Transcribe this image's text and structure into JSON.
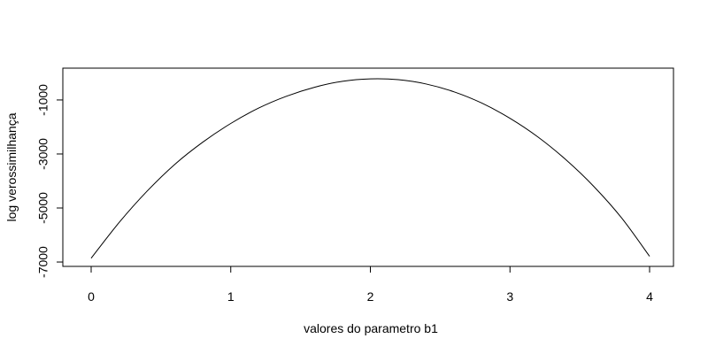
{
  "chart_data": {
    "type": "line",
    "xlabel": "valores do parametro b1",
    "ylabel": "log verossimilhança",
    "xlim": [
      0,
      4
    ],
    "ylim": [
      -6900,
      -150
    ],
    "xticks": [
      0,
      1,
      2,
      3,
      4
    ],
    "yticks": [
      -7000,
      -5000,
      -3000,
      -1000
    ],
    "xtick_labels": [
      "0",
      "1",
      "2",
      "3",
      "4"
    ],
    "ytick_labels": [
      "-7000",
      "-5000",
      "-3000",
      "-1000"
    ],
    "grid": false,
    "legend": "none",
    "line_color": "#000000",
    "series": [
      {
        "x": [
          0,
          0.2,
          0.4,
          0.6,
          0.8,
          1.0,
          1.2,
          1.4,
          1.6,
          1.8,
          2.0,
          2.2,
          2.4,
          2.6,
          2.8,
          3.0,
          3.2,
          3.4,
          3.6,
          3.8,
          4.0
        ],
        "y": [
          -6860,
          -5540,
          -4380,
          -3380,
          -2560,
          -1870,
          -1300,
          -860,
          -530,
          -310,
          -220,
          -250,
          -410,
          -700,
          -1120,
          -1680,
          -2370,
          -3210,
          -4200,
          -5370,
          -6790
        ]
      }
    ]
  }
}
